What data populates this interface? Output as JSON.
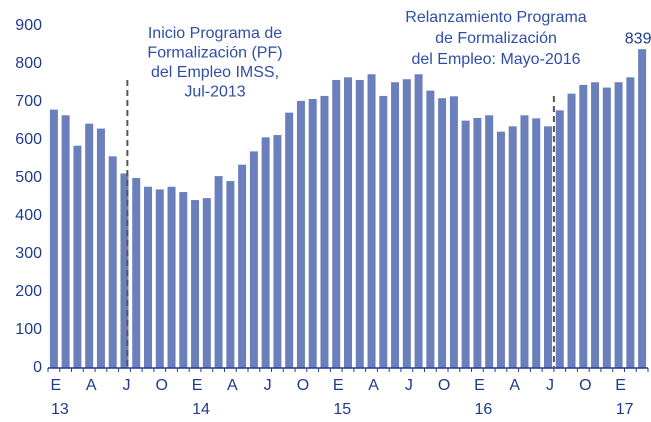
{
  "chart_data": {
    "type": "bar",
    "categories": [
      "E",
      null,
      null,
      "A",
      null,
      null,
      "J",
      null,
      null,
      "O",
      null,
      null,
      "E",
      null,
      null,
      "A",
      null,
      null,
      "J",
      null,
      null,
      "O",
      null,
      null,
      "E",
      null,
      null,
      "A",
      null,
      null,
      "J",
      null,
      null,
      "O",
      null,
      null,
      "E",
      null,
      null,
      "A",
      null,
      null,
      "J",
      null,
      null,
      "O",
      null,
      null,
      "E",
      null,
      null
    ],
    "category_years": [
      "13",
      null,
      null,
      null,
      null,
      null,
      null,
      null,
      null,
      null,
      null,
      null,
      "14",
      null,
      null,
      null,
      null,
      null,
      null,
      null,
      null,
      null,
      null,
      null,
      "15",
      null,
      null,
      null,
      null,
      null,
      null,
      null,
      null,
      null,
      null,
      null,
      "16",
      null,
      null,
      null,
      null,
      null,
      null,
      null,
      null,
      null,
      null,
      null,
      "17",
      null,
      null
    ],
    "values": [
      680,
      665,
      585,
      643,
      630,
      557,
      512,
      500,
      477,
      470,
      477,
      463,
      442,
      447,
      505,
      492,
      535,
      570,
      607,
      613,
      672,
      703,
      708,
      716,
      758,
      765,
      758,
      773,
      716,
      752,
      760,
      773,
      730,
      710,
      715,
      651,
      658,
      665,
      622,
      636,
      665,
      657,
      636,
      678,
      722,
      745,
      752,
      738,
      752,
      765,
      839
    ],
    "value_labels": [
      null,
      null,
      null,
      null,
      null,
      null,
      null,
      null,
      null,
      null,
      null,
      null,
      null,
      null,
      null,
      null,
      null,
      null,
      null,
      null,
      null,
      null,
      null,
      null,
      null,
      null,
      null,
      null,
      null,
      null,
      null,
      null,
      null,
      null,
      null,
      null,
      null,
      null,
      null,
      null,
      null,
      null,
      null,
      null,
      null,
      null,
      null,
      null,
      null,
      null,
      "839"
    ],
    "color": "#6b7fbd",
    "ylim": [
      0,
      900
    ],
    "yticks": [
      0,
      100,
      200,
      300,
      400,
      500,
      600,
      700,
      800,
      900
    ],
    "grid": false,
    "annotations": [
      {
        "lines": [
          "Inicio Programa de",
          "Formalización (PF)",
          "del Empleo IMSS,",
          "Jul-2013"
        ]
      },
      {
        "lines": [
          "Relanzamiento Programa",
          "de Formalización",
          "del Empleo: Mayo-2016"
        ]
      }
    ]
  }
}
